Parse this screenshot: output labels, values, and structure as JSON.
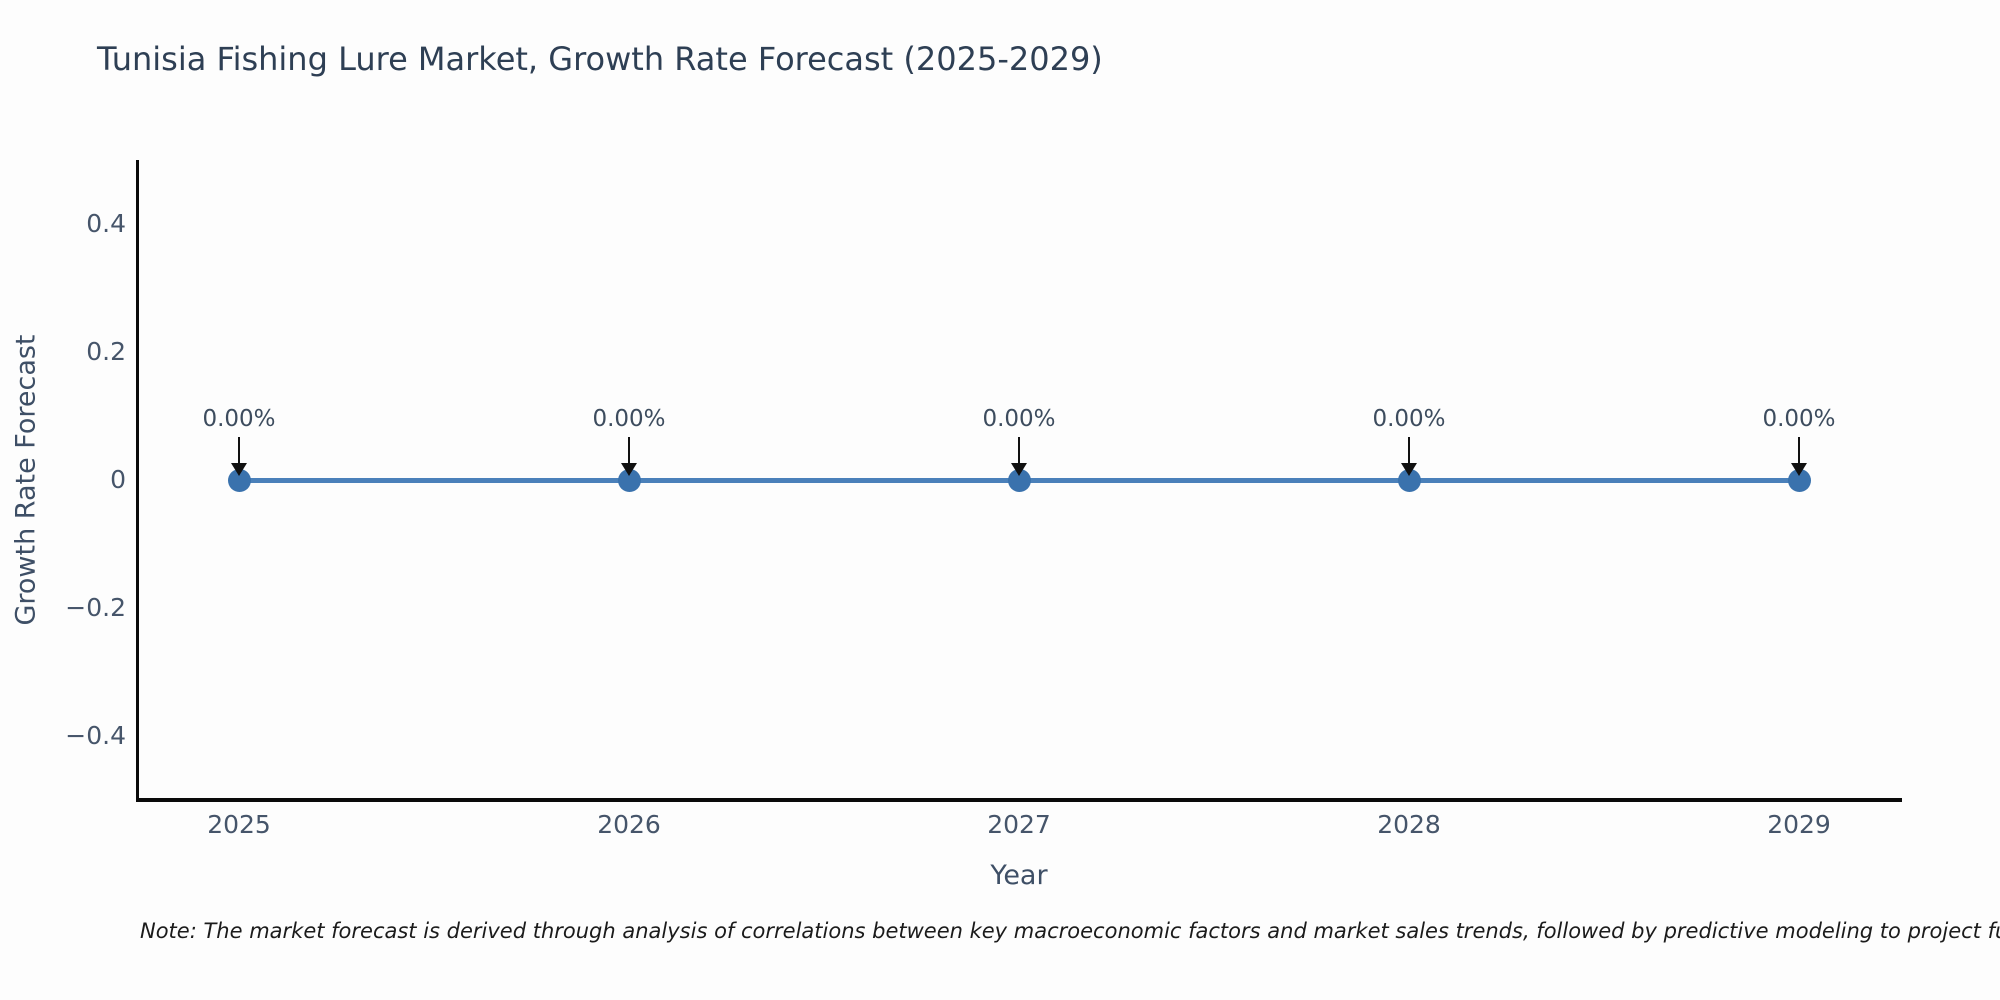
{
  "title": "Tunisia Fishing Lure Market, Growth Rate Forecast (2025-2029)",
  "note": "Note: The market forecast is derived through analysis of correlations between key macroeconomic factors and market sales trends, followed by predictive modeling to project future sales.",
  "chart_data": {
    "type": "line",
    "title": "Tunisia Fishing Lure Market, Growth Rate Forecast (2025-2029)",
    "xlabel": "Year",
    "ylabel": "Growth Rate Forecast",
    "x": [
      2025,
      2026,
      2027,
      2028,
      2029
    ],
    "y": [
      0,
      0,
      0,
      0,
      0
    ],
    "point_labels": [
      "0.00%",
      "0.00%",
      "0.00%",
      "0.00%",
      "0.00%"
    ],
    "ylim": [
      -0.5,
      0.5
    ],
    "yticks": [
      0.4,
      0.2,
      0,
      -0.2,
      -0.4
    ],
    "grid": false,
    "legend": "none",
    "line_color": "#4a80ba",
    "marker_color": "#3a72ad",
    "annotation_arrow_color": "#111111",
    "axis_line_color": "#0a0a0a"
  }
}
